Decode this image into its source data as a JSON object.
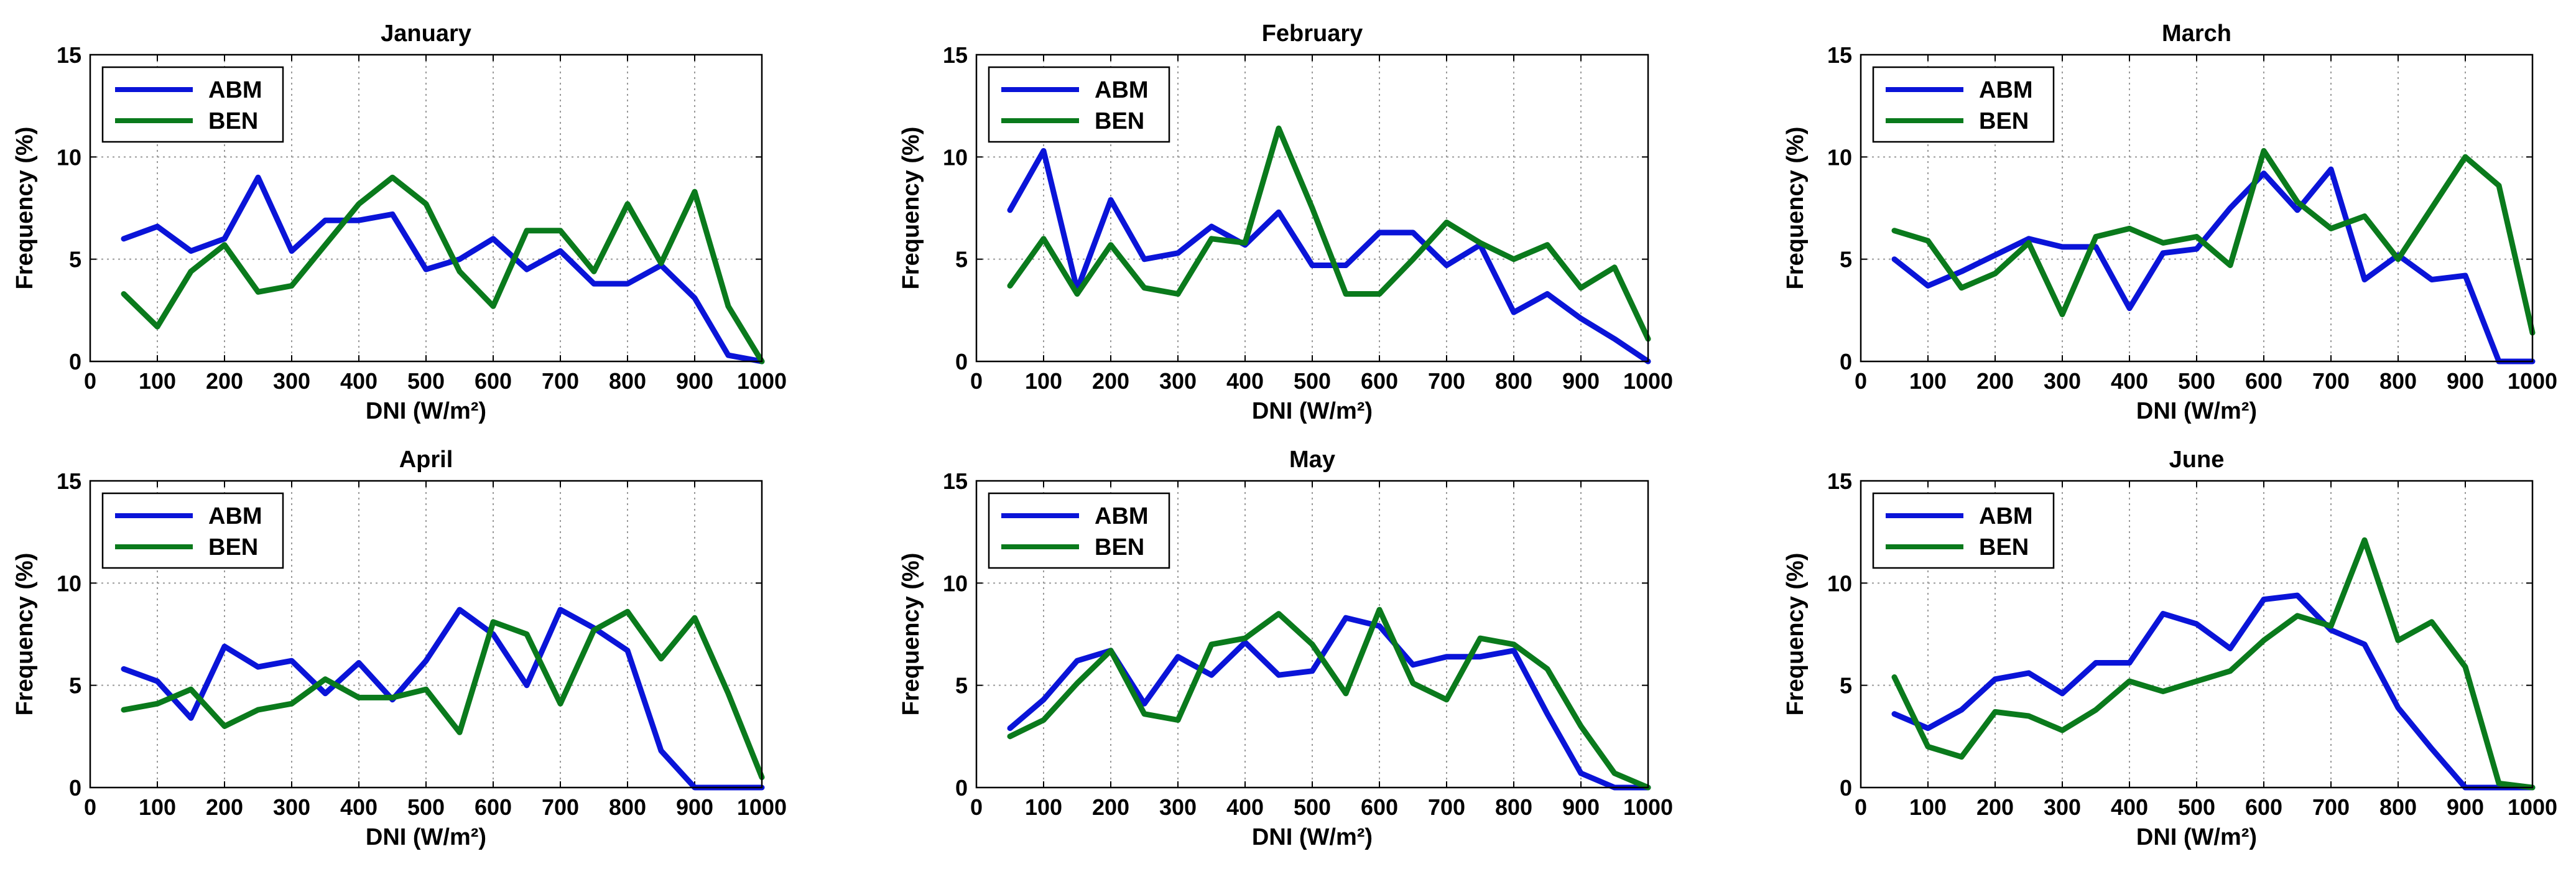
{
  "figure": {
    "xlabel": "DNI (W/m²)",
    "ylabel": "Frequency (%)"
  },
  "colors": {
    "ABM": "#0a14d8",
    "BEN": "#0a7a1c",
    "grid": "#9a9a9a",
    "axis": "#000000"
  },
  "chart_data": [
    {
      "type": "line",
      "title": "January",
      "xlabel": "DNI (W/m²)",
      "ylabel": "Frequency (%)",
      "xlim": [
        0,
        1000
      ],
      "ylim": [
        0,
        15
      ],
      "xticks": [
        0,
        100,
        200,
        300,
        400,
        500,
        600,
        700,
        800,
        900,
        1000
      ],
      "yticks": [
        0,
        5,
        10,
        15
      ],
      "grid": true,
      "legend": "top-left",
      "x": [
        50,
        100,
        150,
        200,
        250,
        300,
        350,
        400,
        450,
        500,
        550,
        600,
        650,
        700,
        750,
        800,
        850,
        900,
        950,
        1000
      ],
      "series": [
        {
          "name": "ABM",
          "values": [
            6.0,
            6.6,
            5.4,
            6.0,
            9.0,
            5.4,
            6.9,
            6.9,
            7.2,
            4.5,
            5.0,
            6.0,
            4.5,
            5.4,
            3.8,
            3.8,
            4.7,
            3.1,
            0.3,
            0.0
          ]
        },
        {
          "name": "BEN",
          "values": [
            3.3,
            1.7,
            4.4,
            5.7,
            3.4,
            3.7,
            5.7,
            7.7,
            9.0,
            7.7,
            4.4,
            2.7,
            6.4,
            6.4,
            4.4,
            7.7,
            4.8,
            8.3,
            2.7,
            0.0
          ]
        }
      ]
    },
    {
      "type": "line",
      "title": "February",
      "xlabel": "DNI (W/m²)",
      "ylabel": "Frequency (%)",
      "xlim": [
        0,
        1000
      ],
      "ylim": [
        0,
        15
      ],
      "xticks": [
        0,
        100,
        200,
        300,
        400,
        500,
        600,
        700,
        800,
        900,
        1000
      ],
      "yticks": [
        0,
        5,
        10,
        15
      ],
      "grid": true,
      "legend": "top-left",
      "x": [
        50,
        100,
        150,
        200,
        250,
        300,
        350,
        400,
        450,
        500,
        550,
        600,
        650,
        700,
        750,
        800,
        850,
        900,
        950,
        1000
      ],
      "series": [
        {
          "name": "ABM",
          "values": [
            7.4,
            10.3,
            3.5,
            7.9,
            5.0,
            5.3,
            6.6,
            5.7,
            7.3,
            4.7,
            4.7,
            6.3,
            6.3,
            4.7,
            5.7,
            2.4,
            3.3,
            2.1,
            1.1,
            0.0
          ]
        },
        {
          "name": "BEN",
          "values": [
            3.7,
            6.0,
            3.3,
            5.7,
            3.6,
            3.3,
            6.0,
            5.8,
            11.4,
            7.5,
            3.3,
            3.3,
            5.0,
            6.8,
            5.8,
            5.0,
            5.7,
            3.6,
            4.6,
            1.1
          ]
        }
      ]
    },
    {
      "type": "line",
      "title": "March",
      "xlabel": "DNI (W/m²)",
      "ylabel": "Frequency (%)",
      "xlim": [
        0,
        1000
      ],
      "ylim": [
        0,
        15
      ],
      "xticks": [
        0,
        100,
        200,
        300,
        400,
        500,
        600,
        700,
        800,
        900,
        1000
      ],
      "yticks": [
        0,
        5,
        10,
        15
      ],
      "grid": true,
      "legend": "top-left",
      "x": [
        50,
        100,
        150,
        200,
        250,
        300,
        350,
        400,
        450,
        500,
        550,
        600,
        650,
        700,
        750,
        800,
        850,
        900,
        950,
        1000
      ],
      "series": [
        {
          "name": "ABM",
          "values": [
            5.0,
            3.7,
            4.4,
            5.2,
            6.0,
            5.6,
            5.6,
            2.6,
            5.3,
            5.5,
            7.5,
            9.2,
            7.4,
            9.4,
            4.0,
            5.2,
            4.0,
            4.2,
            0.0,
            0.0
          ]
        },
        {
          "name": "BEN",
          "values": [
            6.4,
            5.9,
            3.6,
            4.3,
            5.8,
            2.3,
            6.1,
            6.5,
            5.8,
            6.1,
            4.7,
            10.3,
            7.8,
            6.5,
            7.1,
            5.0,
            7.5,
            10.0,
            8.6,
            1.4
          ]
        }
      ]
    },
    {
      "type": "line",
      "title": "April",
      "xlabel": "DNI (W/m²)",
      "ylabel": "Frequency (%)",
      "xlim": [
        0,
        1000
      ],
      "ylim": [
        0,
        15
      ],
      "xticks": [
        0,
        100,
        200,
        300,
        400,
        500,
        600,
        700,
        800,
        900,
        1000
      ],
      "yticks": [
        0,
        5,
        10,
        15
      ],
      "grid": true,
      "legend": "top-left",
      "x": [
        50,
        100,
        150,
        200,
        250,
        300,
        350,
        400,
        450,
        500,
        550,
        600,
        650,
        700,
        750,
        800,
        850,
        900,
        950,
        1000
      ],
      "series": [
        {
          "name": "ABM",
          "values": [
            5.8,
            5.2,
            3.4,
            6.9,
            5.9,
            6.2,
            4.6,
            6.1,
            4.3,
            6.2,
            8.7,
            7.5,
            5.0,
            8.7,
            7.8,
            6.7,
            1.8,
            0.0,
            0.0,
            0.0
          ]
        },
        {
          "name": "BEN",
          "values": [
            3.8,
            4.1,
            4.8,
            3.0,
            3.8,
            4.1,
            5.3,
            4.4,
            4.4,
            4.8,
            2.7,
            8.1,
            7.5,
            4.1,
            7.7,
            8.6,
            6.3,
            8.3,
            4.6,
            0.5
          ]
        }
      ]
    },
    {
      "type": "line",
      "title": "May",
      "xlabel": "DNI (W/m²)",
      "ylabel": "Frequency (%)",
      "xlim": [
        0,
        1000
      ],
      "ylim": [
        0,
        15
      ],
      "xticks": [
        0,
        100,
        200,
        300,
        400,
        500,
        600,
        700,
        800,
        900,
        1000
      ],
      "yticks": [
        0,
        5,
        10,
        15
      ],
      "grid": true,
      "legend": "top-left",
      "x": [
        50,
        100,
        150,
        200,
        250,
        300,
        350,
        400,
        450,
        500,
        550,
        600,
        650,
        700,
        750,
        800,
        850,
        900,
        950,
        1000
      ],
      "series": [
        {
          "name": "ABM",
          "values": [
            2.9,
            4.3,
            6.2,
            6.7,
            4.1,
            6.4,
            5.5,
            7.1,
            5.5,
            5.7,
            8.3,
            7.9,
            6.0,
            6.4,
            6.4,
            6.7,
            3.6,
            0.7,
            0.0,
            0.0
          ]
        },
        {
          "name": "BEN",
          "values": [
            2.5,
            3.3,
            5.1,
            6.7,
            3.6,
            3.3,
            7.0,
            7.3,
            8.5,
            7.0,
            4.6,
            8.7,
            5.1,
            4.3,
            7.3,
            7.0,
            5.8,
            3.0,
            0.7,
            0.0
          ]
        }
      ]
    },
    {
      "type": "line",
      "title": "June",
      "xlabel": "DNI (W/m²)",
      "ylabel": "Frequency (%)",
      "xlim": [
        0,
        1000
      ],
      "ylim": [
        0,
        15
      ],
      "xticks": [
        0,
        100,
        200,
        300,
        400,
        500,
        600,
        700,
        800,
        900,
        1000
      ],
      "yticks": [
        0,
        5,
        10,
        15
      ],
      "grid": true,
      "legend": "top-left",
      "x": [
        50,
        100,
        150,
        200,
        250,
        300,
        350,
        400,
        450,
        500,
        550,
        600,
        650,
        700,
        750,
        800,
        850,
        900,
        950,
        1000
      ],
      "series": [
        {
          "name": "ABM",
          "values": [
            3.6,
            2.9,
            3.8,
            5.3,
            5.6,
            4.6,
            6.1,
            6.1,
            8.5,
            8.0,
            6.8,
            9.2,
            9.4,
            7.7,
            7.0,
            3.9,
            1.9,
            0.0,
            0.0,
            0.0
          ]
        },
        {
          "name": "BEN",
          "values": [
            5.4,
            2.0,
            1.5,
            3.7,
            3.5,
            2.8,
            3.8,
            5.2,
            4.7,
            5.2,
            5.7,
            7.2,
            8.4,
            7.9,
            12.1,
            7.2,
            8.1,
            5.9,
            0.2,
            0.0
          ]
        }
      ]
    }
  ]
}
